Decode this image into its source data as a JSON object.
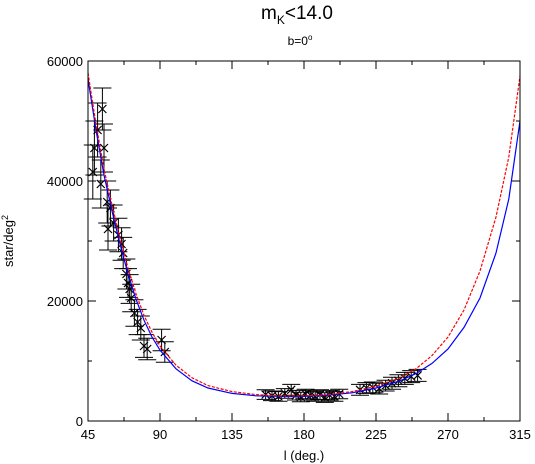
{
  "chart_data": {
    "type": "scatter",
    "title": "m",
    "title_sub": "K",
    "title_rest": "<14.0",
    "subtitle": "b=0",
    "subtitle_degree": "o",
    "xlabel": "l (deg.)",
    "ylabel": "star/deg",
    "ylabel_sup": "2",
    "xlim": [
      45,
      315
    ],
    "ylim": [
      0,
      60000
    ],
    "xticks": [
      45,
      90,
      135,
      180,
      225,
      270,
      315
    ],
    "yticks": [
      0,
      20000,
      40000,
      60000
    ],
    "grid": false,
    "colors": {
      "observed": "#000000",
      "model_red": "#ff0000",
      "model_blue": "#0000ff"
    },
    "series": [
      {
        "marker": "x-with-errorbars",
        "points": [
          {
            "x": 48,
            "y": 41500,
            "yerr": 4500
          },
          {
            "x": 49,
            "y": 45500,
            "yerr": 4500
          },
          {
            "x": 51,
            "y": 48500,
            "yerr": 4500
          },
          {
            "x": 53,
            "y": 39500,
            "yerr": 4000
          },
          {
            "x": 54,
            "y": 52000,
            "yerr": 3500
          },
          {
            "x": 55,
            "y": 45500,
            "yerr": 4000
          },
          {
            "x": 57,
            "y": 36500,
            "yerr": 3500
          },
          {
            "x": 57.5,
            "y": 32000,
            "yerr": 3500
          },
          {
            "x": 59,
            "y": 35500,
            "yerr": 3000
          },
          {
            "x": 61,
            "y": 33000,
            "yerr": 3000
          },
          {
            "x": 64,
            "y": 31000,
            "yerr": 2800
          },
          {
            "x": 66,
            "y": 29500,
            "yerr": 2700
          },
          {
            "x": 67,
            "y": 28000,
            "yerr": 2600
          },
          {
            "x": 69,
            "y": 24500,
            "yerr": 2500
          },
          {
            "x": 70,
            "y": 23000,
            "yerr": 2400
          },
          {
            "x": 71,
            "y": 22000,
            "yerr": 2400
          },
          {
            "x": 72,
            "y": 20500,
            "yerr": 2300
          },
          {
            "x": 74,
            "y": 18000,
            "yerr": 2200
          },
          {
            "x": 76,
            "y": 16500,
            "yerr": 2100
          },
          {
            "x": 78,
            "y": 15500,
            "yerr": 2000
          },
          {
            "x": 80,
            "y": 12500,
            "yerr": 1900
          },
          {
            "x": 82,
            "y": 12000,
            "yerr": 1800
          },
          {
            "x": 91,
            "y": 13500,
            "yerr": 1800
          },
          {
            "x": 93,
            "y": 11500,
            "yerr": 1700
          },
          {
            "x": 156,
            "y": 4400,
            "yerr": 800
          },
          {
            "x": 160,
            "y": 4200,
            "yerr": 800
          },
          {
            "x": 164,
            "y": 4100,
            "yerr": 800
          },
          {
            "x": 168,
            "y": 4600,
            "yerr": 800
          },
          {
            "x": 172,
            "y": 5200,
            "yerr": 900
          },
          {
            "x": 175,
            "y": 4300,
            "yerr": 800
          },
          {
            "x": 178,
            "y": 4000,
            "yerr": 800
          },
          {
            "x": 181,
            "y": 4500,
            "yerr": 800
          },
          {
            "x": 184,
            "y": 4300,
            "yerr": 800
          },
          {
            "x": 187,
            "y": 4100,
            "yerr": 800
          },
          {
            "x": 190,
            "y": 4400,
            "yerr": 800
          },
          {
            "x": 193,
            "y": 3900,
            "yerr": 800
          },
          {
            "x": 196,
            "y": 4300,
            "yerr": 800
          },
          {
            "x": 199,
            "y": 4100,
            "yerr": 800
          },
          {
            "x": 202,
            "y": 4500,
            "yerr": 800
          },
          {
            "x": 215,
            "y": 5200,
            "yerr": 900
          },
          {
            "x": 219,
            "y": 5500,
            "yerr": 900
          },
          {
            "x": 223,
            "y": 5600,
            "yerr": 900
          },
          {
            "x": 227,
            "y": 5400,
            "yerr": 900
          },
          {
            "x": 231,
            "y": 5900,
            "yerr": 900
          },
          {
            "x": 235,
            "y": 6300,
            "yerr": 1000
          },
          {
            "x": 239,
            "y": 6700,
            "yerr": 1000
          },
          {
            "x": 243,
            "y": 7100,
            "yerr": 1000
          },
          {
            "x": 247,
            "y": 7400,
            "yerr": 1000
          },
          {
            "x": 251,
            "y": 7600,
            "yerr": 1000
          }
        ]
      },
      {
        "style": "line",
        "points": [
          {
            "x": 45,
            "y": 58000
          },
          {
            "x": 50,
            "y": 49500
          },
          {
            "x": 55,
            "y": 42000
          },
          {
            "x": 60,
            "y": 36000
          },
          {
            "x": 65,
            "y": 30500
          },
          {
            "x": 70,
            "y": 25500
          },
          {
            "x": 75,
            "y": 21200
          },
          {
            "x": 80,
            "y": 17600
          },
          {
            "x": 85,
            "y": 14800
          },
          {
            "x": 90,
            "y": 12500
          },
          {
            "x": 100,
            "y": 9300
          },
          {
            "x": 110,
            "y": 7200
          },
          {
            "x": 120,
            "y": 5900
          },
          {
            "x": 135,
            "y": 4900
          },
          {
            "x": 150,
            "y": 4400
          },
          {
            "x": 165,
            "y": 4200
          },
          {
            "x": 180,
            "y": 4200
          },
          {
            "x": 195,
            "y": 4400
          },
          {
            "x": 210,
            "y": 4900
          },
          {
            "x": 225,
            "y": 5800
          },
          {
            "x": 240,
            "y": 7200
          },
          {
            "x": 250,
            "y": 8700
          },
          {
            "x": 260,
            "y": 10900
          },
          {
            "x": 270,
            "y": 14000
          },
          {
            "x": 280,
            "y": 18500
          },
          {
            "x": 290,
            "y": 25000
          },
          {
            "x": 300,
            "y": 34000
          },
          {
            "x": 308,
            "y": 44000
          },
          {
            "x": 315,
            "y": 57500
          }
        ]
      },
      {
        "style": "line",
        "points": [
          {
            "x": 45,
            "y": 57000
          },
          {
            "x": 50,
            "y": 48500
          },
          {
            "x": 55,
            "y": 41000
          },
          {
            "x": 60,
            "y": 35000
          },
          {
            "x": 65,
            "y": 29500
          },
          {
            "x": 70,
            "y": 24500
          },
          {
            "x": 75,
            "y": 20300
          },
          {
            "x": 80,
            "y": 16800
          },
          {
            "x": 85,
            "y": 14000
          },
          {
            "x": 90,
            "y": 11800
          },
          {
            "x": 100,
            "y": 8700
          },
          {
            "x": 110,
            "y": 6700
          },
          {
            "x": 120,
            "y": 5500
          },
          {
            "x": 135,
            "y": 4600
          },
          {
            "x": 150,
            "y": 4200
          },
          {
            "x": 165,
            "y": 4100
          },
          {
            "x": 180,
            "y": 4100
          },
          {
            "x": 195,
            "y": 4300
          },
          {
            "x": 210,
            "y": 4700
          },
          {
            "x": 225,
            "y": 5500
          },
          {
            "x": 240,
            "y": 6700
          },
          {
            "x": 250,
            "y": 7900
          },
          {
            "x": 260,
            "y": 9600
          },
          {
            "x": 270,
            "y": 12000
          },
          {
            "x": 280,
            "y": 15600
          },
          {
            "x": 290,
            "y": 20500
          },
          {
            "x": 300,
            "y": 28000
          },
          {
            "x": 308,
            "y": 37000
          },
          {
            "x": 315,
            "y": 50000
          }
        ]
      }
    ]
  }
}
